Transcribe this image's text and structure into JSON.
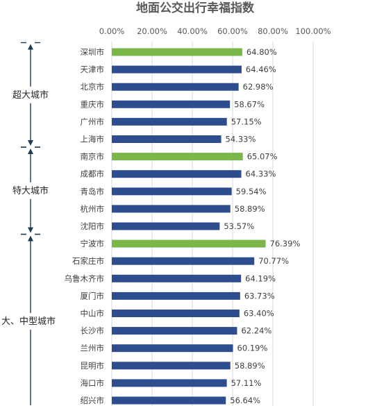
{
  "chart_data": {
    "type": "bar",
    "orientation": "horizontal",
    "title": "地面公交出行幸福指数",
    "xlim": [
      0,
      100
    ],
    "x_ticks": [
      "0.00%",
      "20.00%",
      "40.00%",
      "60.00%",
      "80.00%",
      "100.00%"
    ],
    "grid": true,
    "highlight_color": "#7AB648",
    "default_color": "#2E4D8F",
    "categories": [
      "深圳市",
      "天津市",
      "北京市",
      "重庆市",
      "广州市",
      "上海市",
      "南京市",
      "成都市",
      "青岛市",
      "杭州市",
      "沈阳市",
      "宁波市",
      "石家庄市",
      "乌鲁木齐市",
      "厦门市",
      "中山市",
      "长沙市",
      "兰州市",
      "昆明市",
      "海口市",
      "绍兴市"
    ],
    "values": [
      64.8,
      64.46,
      62.98,
      58.67,
      57.15,
      54.33,
      65.07,
      64.33,
      59.54,
      58.89,
      53.57,
      76.39,
      70.77,
      64.19,
      63.73,
      63.4,
      62.24,
      60.19,
      58.89,
      57.11,
      56.64
    ],
    "value_labels": [
      "64.80%",
      "64.46%",
      "62.98%",
      "58.67%",
      "57.15%",
      "54.33%",
      "65.07%",
      "64.33%",
      "59.54%",
      "58.89%",
      "53.57%",
      "76.39%",
      "70.77%",
      "64.19%",
      "63.73%",
      "63.40%",
      "62.24%",
      "60.19%",
      "58.89%",
      "57.11%",
      "56.64%"
    ],
    "highlighted": [
      0,
      6,
      11
    ],
    "groups": [
      {
        "label": "超大城市",
        "start": 0,
        "end": 5
      },
      {
        "label": "特大城市",
        "start": 6,
        "end": 10
      },
      {
        "label": "大、中型城市",
        "start": 11,
        "end": 20
      }
    ]
  }
}
